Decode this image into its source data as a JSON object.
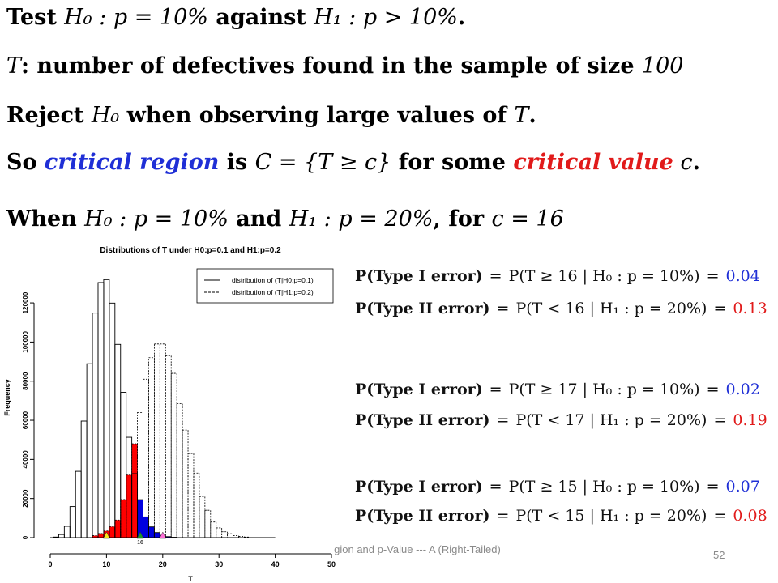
{
  "lines": {
    "l1": {
      "a": "Test ",
      "b": "H₀ : p = 10%",
      "c": " against ",
      "d": "H₁ : p > 10%",
      "e": "."
    },
    "l2": {
      "a": "T",
      "b": ": number of defectives found in the sample of size ",
      "c": "100"
    },
    "l3": {
      "a": "Reject ",
      "b": "H₀",
      "c": " when observing large values of ",
      "d": "T",
      "e": "."
    },
    "l4": {
      "a": "So ",
      "b": "critical region",
      "c": " is ",
      "d": "C = {T ≥ c}",
      "e": "  for some ",
      "f": "critical value",
      "g": " c",
      "h": "."
    },
    "l5": {
      "a": "When ",
      "b": "H₀ : p = 10%",
      "c": " and ",
      "d": "H₁ : p = 20%",
      "e": ", for ",
      "f": "c = 16"
    }
  },
  "equations": [
    {
      "left": "P(Type I error)",
      "right": "P(T ≥ 16 | H₀ : p = 10%)",
      "value": "0.04",
      "color": "blue"
    },
    {
      "left": "P(Type II error)",
      "right": "P(T < 16 | H₁ : p = 20%)",
      "value": "0.13",
      "color": "red"
    },
    {
      "left": "P(Type I error)",
      "right": "P(T ≥ 17 | H₀ : p = 10%)",
      "value": "0.02",
      "color": "blue"
    },
    {
      "left": "P(Type II error)",
      "right": "P(T < 17 | H₁ : p = 20%)",
      "value": "0.19",
      "color": "red"
    },
    {
      "left": "P(Type I error)",
      "right": "P(T ≥ 15 | H₀ : p = 10%)",
      "value": "0.07",
      "color": "blue"
    },
    {
      "left": "P(Type II error)",
      "right": "P(T < 15 | H₁ : p = 20%)",
      "value": "0.08",
      "color": "red"
    }
  ],
  "footer": {
    "text": "gion and p-Value --- A (Right-Tailed)",
    "page": "52"
  },
  "chart_data": {
    "type": "bar",
    "title": "Distributions of T under H0:p=0.1 and H1:p=0.2",
    "xlabel": "T",
    "ylabel": "Frequency",
    "xlim": [
      0,
      50
    ],
    "ylim": [
      0,
      125000
    ],
    "xticks": [
      0,
      10,
      20,
      30,
      40,
      50
    ],
    "yticks": [
      0,
      20000,
      40000,
      60000,
      80000,
      100000,
      120000
    ],
    "critical_value": 16,
    "critical_label": "16",
    "legend": {
      "placement": "top-right",
      "entries": [
        "distribution of (T|H0:p=0.1)",
        "distribution of (T|H1:p=0.2)"
      ]
    },
    "series": [
      {
        "name": "distribution of (T|H0:p=0.1)",
        "x": [
          1,
          2,
          3,
          4,
          5,
          6,
          7,
          8,
          9,
          10,
          11,
          12,
          13,
          14,
          15,
          16,
          17,
          18,
          19,
          20,
          21,
          22
        ],
        "values": [
          300,
          1600,
          5800,
          15900,
          33900,
          59600,
          88900,
          114800,
          130400,
          131900,
          119900,
          98800,
          74300,
          51300,
          32700,
          19400,
          10600,
          5500,
          2600,
          1200,
          500,
          200
        ]
      },
      {
        "name": "distribution of (T|H1:p=0.2)",
        "x": [
          8,
          9,
          10,
          11,
          12,
          13,
          14,
          15,
          16,
          17,
          18,
          19,
          20,
          21,
          22,
          23,
          24,
          25,
          26,
          27,
          28,
          29,
          30,
          31,
          32,
          33,
          34,
          35
        ],
        "values": [
          1000,
          2100,
          3400,
          5600,
          9000,
          19500,
          32000,
          48000,
          64000,
          81000,
          92000,
          99000,
          99000,
          93000,
          84000,
          68500,
          55000,
          43000,
          33000,
          21000,
          14000,
          8000,
          5000,
          3000,
          2000,
          1000,
          600,
          300
        ]
      }
    ],
    "markers": [
      {
        "x": 10,
        "color": "#f5e81a"
      },
      {
        "x": 16,
        "color": "#1a9a2a"
      },
      {
        "x": 20,
        "color": "#ff6fd9"
      }
    ]
  }
}
